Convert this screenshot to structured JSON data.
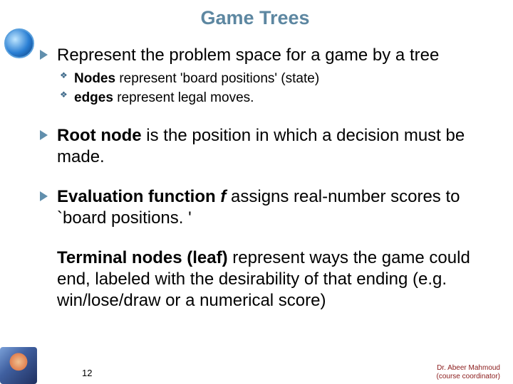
{
  "title": {
    "text": "Game Trees",
    "color": "#5d87a1"
  },
  "bullets": [
    {
      "color": "#618fad",
      "runs": [
        {
          "t": "Represent the problem space for a game by a tree",
          "bold": false,
          "italic": false
        }
      ],
      "sub_color": "#3f6a8a",
      "subs": [
        [
          {
            "t": "Nodes",
            "bold": true,
            "italic": false
          },
          {
            "t": " represent 'board positions' (state)",
            "bold": false,
            "italic": false
          }
        ],
        [
          {
            "t": "edges",
            "bold": true,
            "italic": false
          },
          {
            "t": " represent legal moves.",
            "bold": false,
            "italic": false
          }
        ]
      ]
    },
    {
      "color": "#618fad",
      "runs": [
        {
          "t": "Root node",
          "bold": true,
          "italic": false
        },
        {
          "t": " is the position in which a decision must be made.",
          "bold": false,
          "italic": false
        }
      ]
    },
    {
      "color": "#618fad",
      "runs": [
        {
          "t": "Evaluation function ",
          "bold": true,
          "italic": false
        },
        {
          "t": "f",
          "bold": true,
          "italic": true
        },
        {
          "t": " ",
          "bold": true,
          "italic": false
        },
        {
          "t": "assigns real-number scores to `board positions. '",
          "bold": false,
          "italic": false
        }
      ]
    },
    {
      "color": "#618fad",
      "no_marker": true,
      "runs": [
        {
          "t": "Terminal nodes (leaf) ",
          "bold": true,
          "italic": false
        },
        {
          "t": "represent ways the game could end, labeled with the desirability of that ending (e.g. win/lose/draw or a numerical score)",
          "bold": false,
          "italic": false
        }
      ]
    }
  ],
  "footer": {
    "line1": "Dr. Abeer Mahmoud",
    "line2": "(course coordinator)",
    "color": "#8a1a1a"
  },
  "page_number": "12",
  "text_color": "#000000"
}
